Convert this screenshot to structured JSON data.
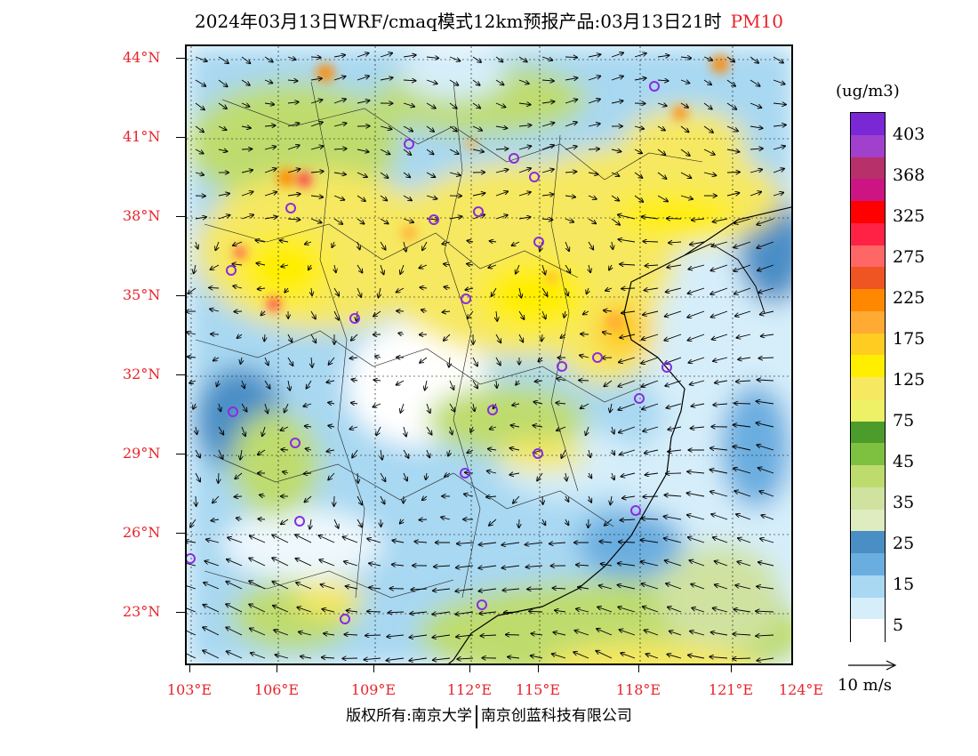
{
  "title": {
    "main": "2024年03月13日WRF/cmaq模式12km预报产品:03月13日21时",
    "pollutant": "PM10"
  },
  "lat_labels": [
    "44°N",
    "41°N",
    "38°N",
    "35°N",
    "32°N",
    "29°N",
    "26°N",
    "23°N"
  ],
  "lon_labels": [
    "103°E",
    "106°E",
    "109°E",
    "112°E",
    "115°E",
    "118°E",
    "121°E",
    "124°E"
  ],
  "colorbar": {
    "unit": "(ug/m3)",
    "labels": [
      "403",
      "368",
      "325",
      "275",
      "225",
      "175",
      "125",
      "75",
      "45",
      "35",
      "25",
      "15",
      "5"
    ],
    "colors": [
      "#7a28d6",
      "#a040cc",
      "#b8306a",
      "#cc1482",
      "#ff0000",
      "#ff2244",
      "#ff6666",
      "#ee5522",
      "#ff8800",
      "#ffaa33",
      "#ffcc22",
      "#ffee00",
      "#f6e860",
      "#eef066",
      "#4c9c2c",
      "#7ec040",
      "#bedc6e",
      "#cfe2a0",
      "#dfecc0",
      "#4a8ec6",
      "#6aaee0",
      "#a8d8f2",
      "#d6eefa",
      "#ffffff"
    ]
  },
  "wind_legend": {
    "label": "10 m/s"
  },
  "copyright": {
    "left": "版权所有:南京大学",
    "right": "南京创蓝科技有限公司"
  }
}
